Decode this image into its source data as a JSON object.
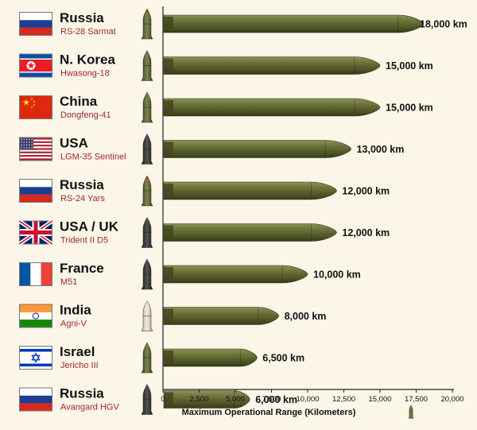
{
  "chart_data": {
    "type": "bar",
    "orientation": "horizontal",
    "xlabel": "Maximum Operational Range (Kilometers)",
    "xlim": [
      0,
      20000
    ],
    "x_ticks": [
      0,
      2500,
      5000,
      7500,
      10000,
      12500,
      15000,
      17500,
      20000
    ],
    "x_tick_labels": [
      "0",
      "2,500",
      "5,000",
      "7,500",
      "10,000",
      "12,500",
      "15,000",
      "17,500",
      "20,000"
    ],
    "grid": false,
    "colors": {
      "background": "#fbf6e8",
      "bar": "#5b6232",
      "country_text": "#111111",
      "missile_text": "#a3262b"
    },
    "rows": [
      {
        "country": "Russia",
        "missile": "RS-28 Sarmat",
        "value": 18000,
        "label": "18,000 km",
        "flag": "russia"
      },
      {
        "country": "N. Korea",
        "missile": "Hwasong-18",
        "value": 15000,
        "label": "15,000 km",
        "flag": "north-korea"
      },
      {
        "country": "China",
        "missile": "Dongfeng-41",
        "value": 15000,
        "label": "15,000 km",
        "flag": "china"
      },
      {
        "country": "USA",
        "missile": "LGM-35 Sentinel",
        "value": 13000,
        "label": "13,000 km",
        "flag": "usa"
      },
      {
        "country": "Russia",
        "missile": "RS-24 Yars",
        "value": 12000,
        "label": "12,000 km",
        "flag": "russia"
      },
      {
        "country": "USA / UK",
        "missile": "Trident II D5",
        "value": 12000,
        "label": "12,000 km",
        "flag": "uk"
      },
      {
        "country": "France",
        "missile": "M51",
        "value": 10000,
        "label": "10,000 km",
        "flag": "france"
      },
      {
        "country": "India",
        "missile": "Agni-V",
        "value": 8000,
        "label": "8,000 km",
        "flag": "india"
      },
      {
        "country": "Israel",
        "missile": "Jericho III",
        "value": 6500,
        "label": "6,500 km",
        "flag": "israel"
      },
      {
        "country": "Russia",
        "missile": "Avangard HGV",
        "value": 6000,
        "label": "6,000 km",
        "flag": "russia"
      }
    ]
  }
}
